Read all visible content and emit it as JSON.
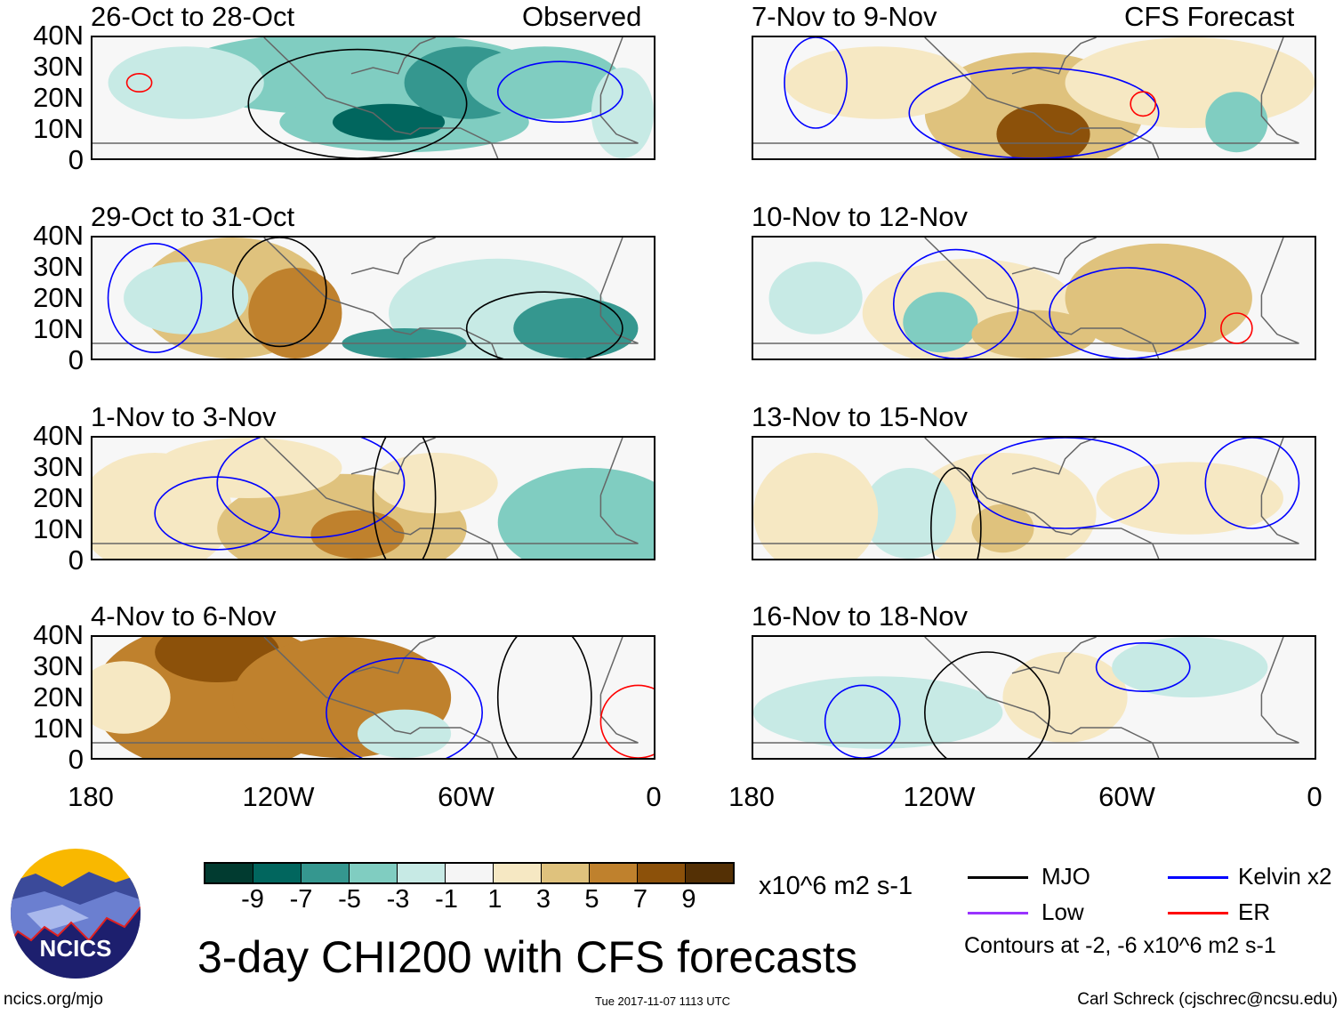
{
  "figure": {
    "title": "3-day CHI200 with CFS forecasts",
    "units": "x10^6 m2 s-1",
    "timestamp": "Tue 2017-11-07 1113 UTC",
    "url": "ncics.org/mjo",
    "author": "Carl Schreck (cjschrec@ncsu.edu)",
    "logo_text": "NCICS"
  },
  "columns": {
    "left": "Observed",
    "right": "CFS Forecast"
  },
  "panels": [
    {
      "title": "26-Oct to 28-Oct"
    },
    {
      "title": "29-Oct to 31-Oct"
    },
    {
      "title": "1-Nov to 3-Nov"
    },
    {
      "title": "4-Nov to 6-Nov"
    },
    {
      "title": "7-Nov to 9-Nov"
    },
    {
      "title": "10-Nov to 12-Nov"
    },
    {
      "title": "13-Nov to 15-Nov"
    },
    {
      "title": "16-Nov to 18-Nov"
    }
  ],
  "y_ticks": [
    "40N",
    "30N",
    "20N",
    "10N",
    "0"
  ],
  "x_ticks": [
    "180",
    "120W",
    "60W",
    "0"
  ],
  "colorbar": {
    "labels": [
      "-9",
      "-7",
      "-5",
      "-3",
      "-1",
      "1",
      "3",
      "5",
      "7",
      "9"
    ],
    "colors": [
      "#013b30",
      "#01665e",
      "#35978f",
      "#80cdc1",
      "#c7eae5",
      "#f5f5f5",
      "#f6e8c3",
      "#dfc27d",
      "#bf812d",
      "#8c510a",
      "#543005"
    ]
  },
  "legend": [
    {
      "label": "MJO",
      "color": "#000000"
    },
    {
      "label": "Kelvin x2",
      "color": "#0000ff"
    },
    {
      "label": "Low",
      "color": "#9933ff"
    },
    {
      "label": "ER",
      "color": "#ff0000"
    }
  ],
  "contour_note": "Contours at -2, -6 x10^6 m2 s-1"
}
